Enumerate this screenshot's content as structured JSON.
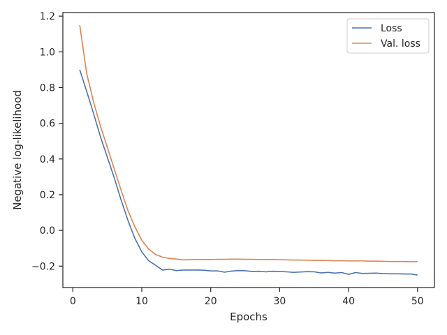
{
  "chart_data": {
    "type": "line",
    "title": "",
    "xlabel": "Epochs",
    "ylabel": "Negative log-likelihood",
    "xlim": [
      -1.45,
      52.45
    ],
    "ylim": [
      -0.32,
      1.22
    ],
    "xticks": [
      0,
      10,
      20,
      30,
      40,
      50
    ],
    "xtick_labels": [
      "0",
      "10",
      "20",
      "30",
      "40",
      "50"
    ],
    "yticks": [
      -0.2,
      0.0,
      0.2,
      0.4,
      0.6,
      0.8,
      1.0,
      1.2
    ],
    "ytick_labels": [
      "−0.2",
      "0.0",
      "0.2",
      "0.4",
      "0.6",
      "0.8",
      "1.0",
      "1.2"
    ],
    "grid": false,
    "legend_position": "top-right",
    "series": [
      {
        "name": "Loss",
        "color": "#4c72b0",
        "x": [
          1,
          2,
          3,
          4,
          5,
          6,
          7,
          8,
          9,
          10,
          11,
          12,
          13,
          14,
          15,
          16,
          17,
          18,
          19,
          20,
          21,
          22,
          23,
          24,
          25,
          26,
          27,
          28,
          29,
          30,
          31,
          32,
          33,
          34,
          35,
          36,
          37,
          38,
          39,
          40,
          41,
          42,
          43,
          44,
          45,
          46,
          47,
          48,
          49,
          50
        ],
        "values": [
          0.9,
          0.78,
          0.655,
          0.525,
          0.41,
          0.295,
          0.17,
          0.055,
          -0.045,
          -0.12,
          -0.17,
          -0.195,
          -0.222,
          -0.217,
          -0.225,
          -0.222,
          -0.222,
          -0.222,
          -0.223,
          -0.227,
          -0.227,
          -0.234,
          -0.228,
          -0.225,
          -0.226,
          -0.23,
          -0.229,
          -0.232,
          -0.229,
          -0.23,
          -0.232,
          -0.235,
          -0.233,
          -0.231,
          -0.232,
          -0.238,
          -0.235,
          -0.239,
          -0.236,
          -0.246,
          -0.236,
          -0.241,
          -0.24,
          -0.239,
          -0.242,
          -0.243,
          -0.243,
          -0.244,
          -0.244,
          -0.25
        ]
      },
      {
        "name": "Val. loss",
        "color": "#dd8452",
        "x": [
          1,
          2,
          3,
          4,
          5,
          6,
          7,
          8,
          9,
          10,
          11,
          12,
          13,
          14,
          15,
          16,
          17,
          18,
          19,
          20,
          21,
          22,
          23,
          24,
          25,
          26,
          27,
          28,
          29,
          30,
          31,
          32,
          33,
          34,
          35,
          36,
          37,
          38,
          39,
          40,
          41,
          42,
          43,
          44,
          45,
          46,
          47,
          48,
          49,
          50
        ],
        "values": [
          1.15,
          0.88,
          0.72,
          0.585,
          0.465,
          0.345,
          0.225,
          0.11,
          0.02,
          -0.055,
          -0.105,
          -0.135,
          -0.15,
          -0.157,
          -0.16,
          -0.165,
          -0.164,
          -0.163,
          -0.163,
          -0.163,
          -0.162,
          -0.162,
          -0.161,
          -0.161,
          -0.162,
          -0.162,
          -0.163,
          -0.163,
          -0.163,
          -0.164,
          -0.165,
          -0.166,
          -0.166,
          -0.167,
          -0.168,
          -0.168,
          -0.169,
          -0.17,
          -0.17,
          -0.171,
          -0.171,
          -0.171,
          -0.172,
          -0.172,
          -0.173,
          -0.174,
          -0.174,
          -0.174,
          -0.175,
          -0.175
        ]
      }
    ]
  }
}
